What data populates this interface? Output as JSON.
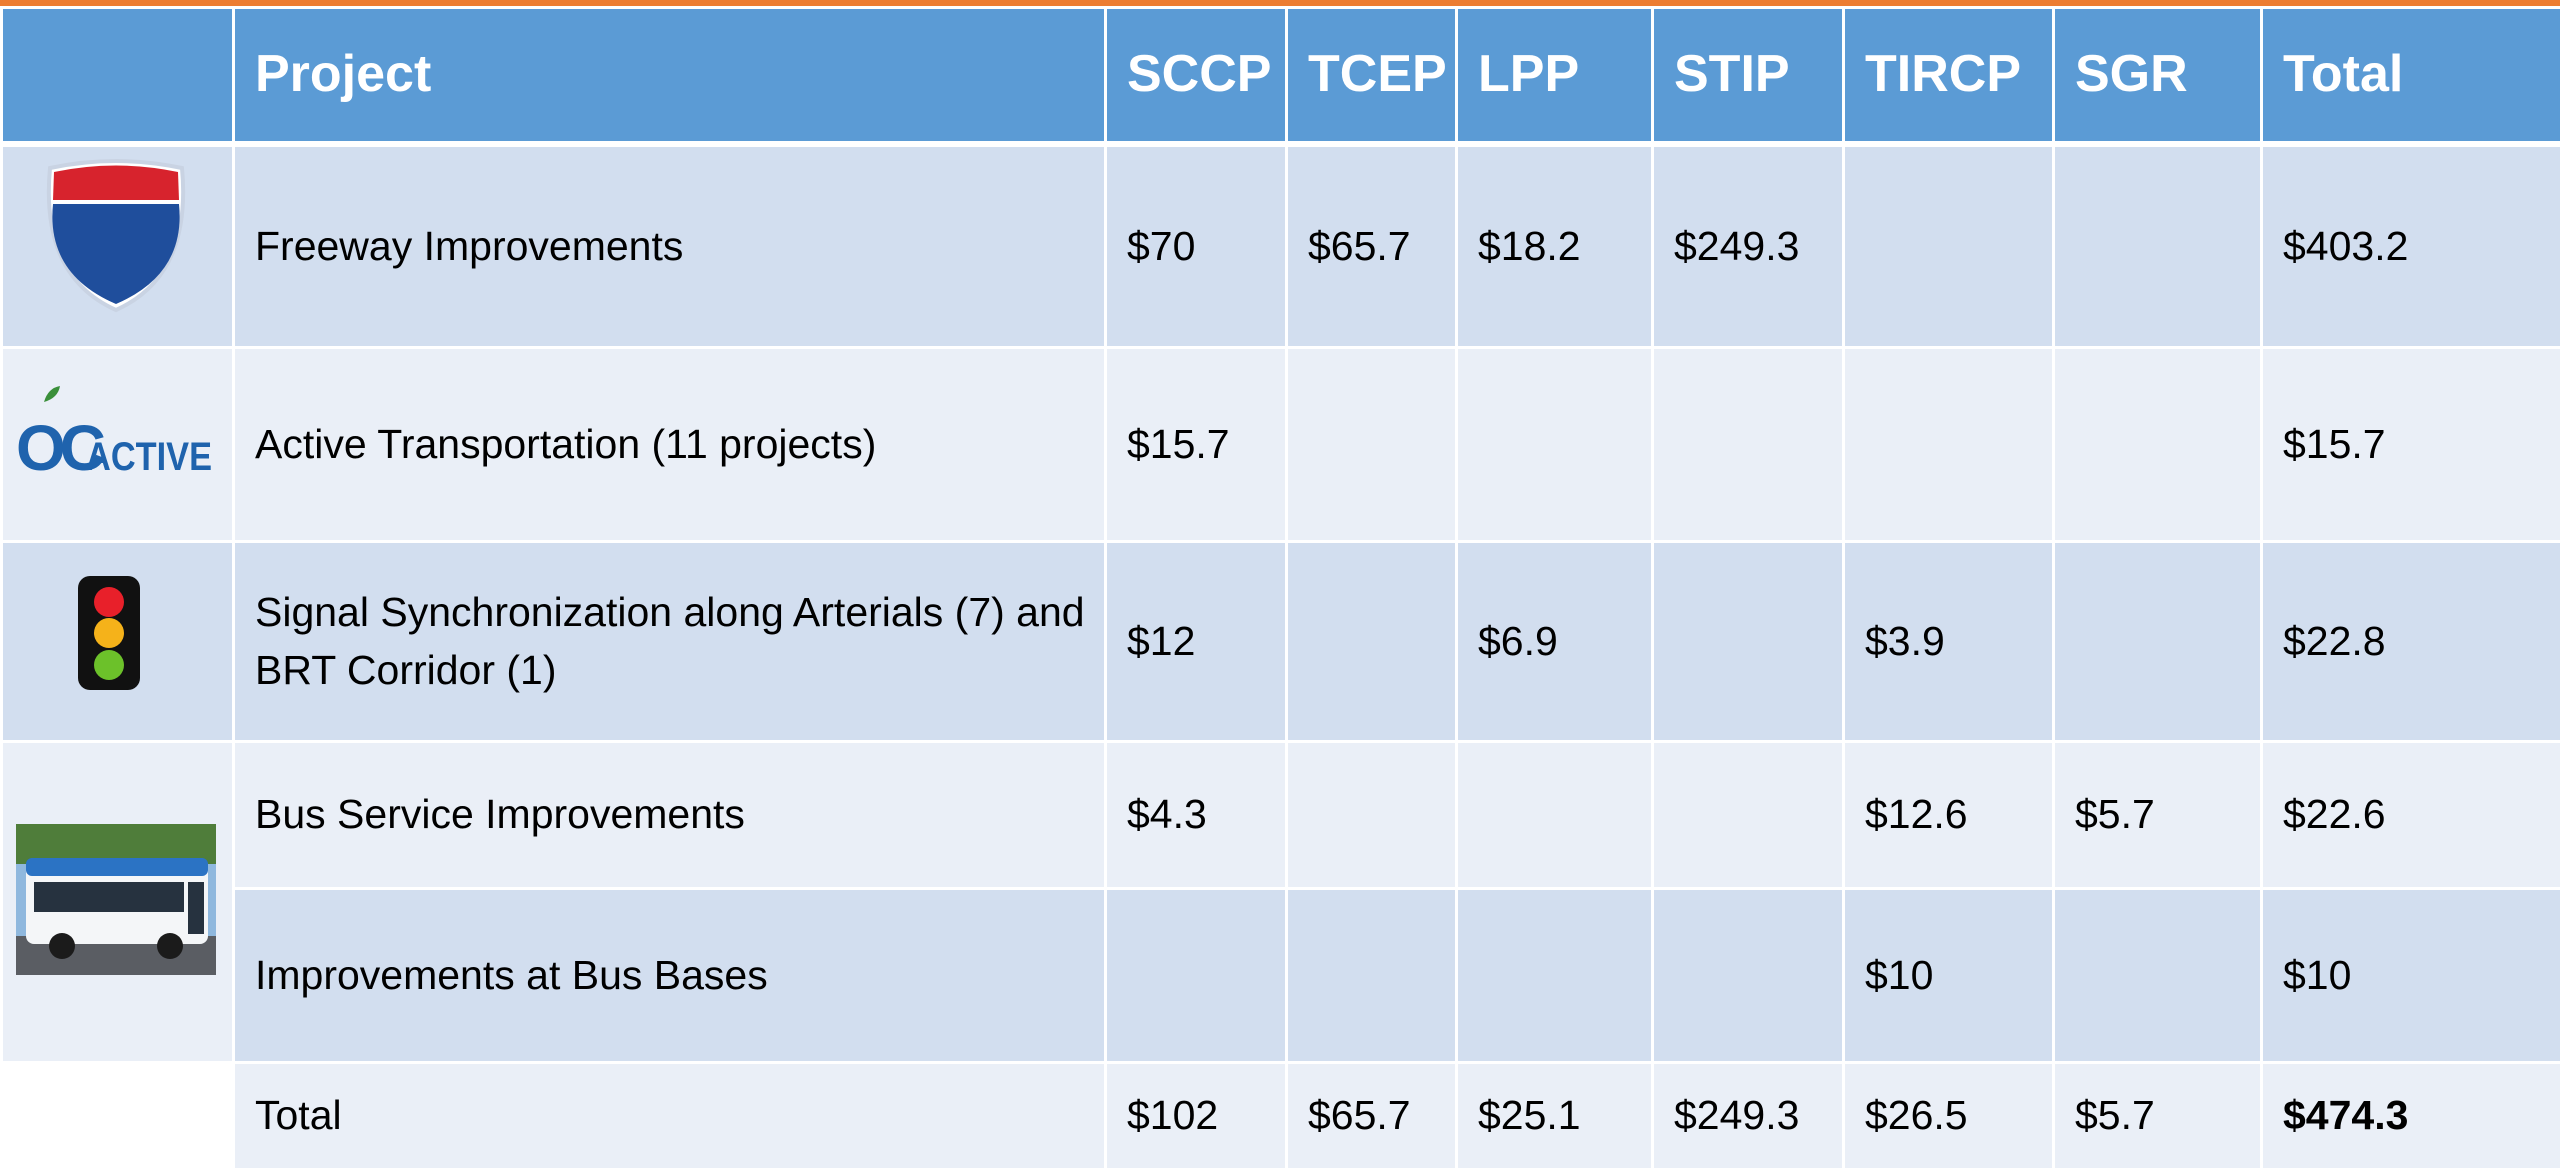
{
  "table": {
    "header": [
      "Project",
      "SCCP",
      "TCEP",
      "LPP",
      "STIP",
      "TIRCP",
      "SGR",
      "Total"
    ],
    "rows": [
      [
        "Freeway Improvements",
        "$70",
        "$65.7",
        "$18.2",
        "$249.3",
        null,
        null,
        "$403.2"
      ],
      [
        "Active Transportation (11 projects)",
        "$15.7",
        null,
        null,
        null,
        null,
        null,
        "$15.7"
      ],
      [
        "Signal Synchronization along Arterials (7) and BRT Corridor (1)",
        "$12",
        null,
        "$6.9",
        null,
        "$3.9",
        null,
        "$22.8"
      ],
      [
        "Bus Service Improvements",
        "$4.3",
        null,
        null,
        null,
        "$12.6",
        "$5.7",
        "$22.6"
      ],
      [
        "Improvements at Bus Bases",
        null,
        null,
        null,
        null,
        "$10",
        null,
        "$10"
      ],
      [
        "Total",
        "$102",
        "$65.7",
        "$25.1",
        "$249.3",
        "$26.5",
        "$5.7",
        "$474.3"
      ]
    ]
  },
  "logo": {
    "prefix": "OC",
    "suffix": "ACTIVE"
  }
}
